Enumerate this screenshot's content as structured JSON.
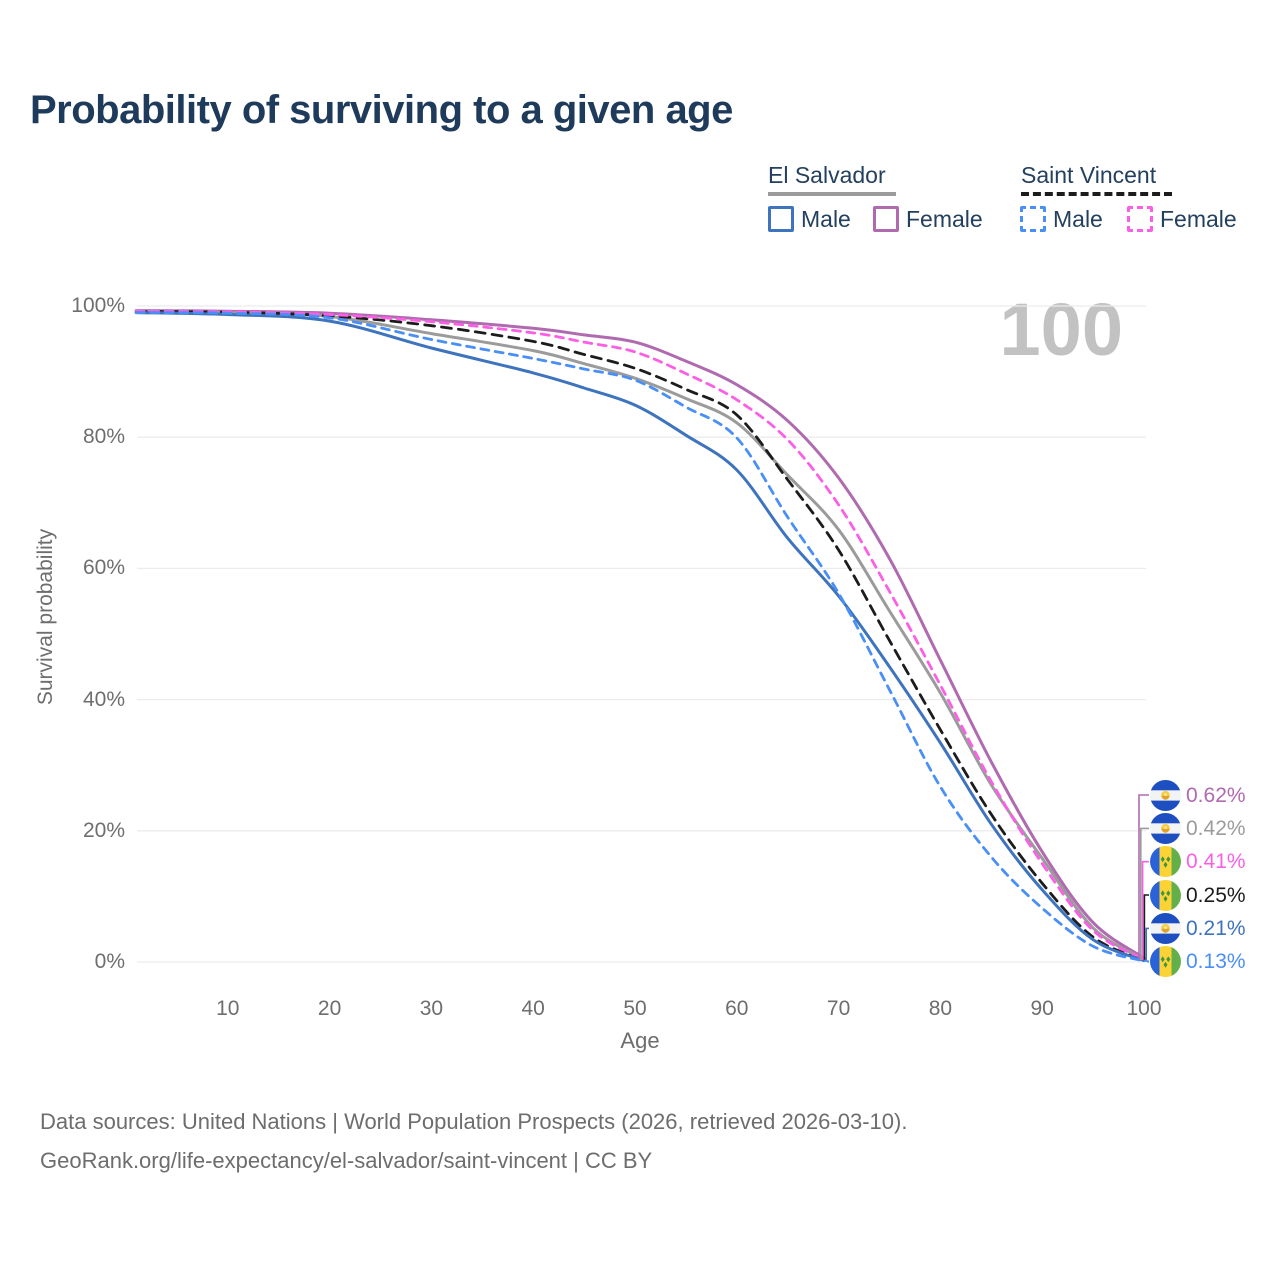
{
  "title": "Probability of surviving to a given age",
  "watermark": "100",
  "legend": {
    "groups": [
      {
        "label": "El Salvador",
        "line_color": "#9b9b9b",
        "line_style": "solid",
        "items": [
          {
            "label": "Male",
            "color": "#3e73bd",
            "style": "solid"
          },
          {
            "label": "Female",
            "color": "#b06ab0",
            "style": "solid"
          }
        ]
      },
      {
        "label": "Saint Vincent",
        "line_color": "#1c1c1c",
        "line_style": "dashed",
        "items": [
          {
            "label": "Male",
            "color": "#4a8ff5",
            "style": "dashed"
          },
          {
            "label": "Female",
            "color": "#fb5fe6",
            "style": "dashed"
          }
        ]
      }
    ]
  },
  "axes": {
    "y": {
      "label": "Survival probability",
      "ticks": [
        "0%",
        "20%",
        "40%",
        "60%",
        "80%",
        "100%"
      ]
    },
    "x": {
      "label": "Age",
      "ticks": [
        "10",
        "20",
        "30",
        "40",
        "50",
        "60",
        "70",
        "80",
        "90",
        "100"
      ]
    }
  },
  "end_labels": [
    {
      "value": "0.62%",
      "flag": "el-salvador",
      "color": "#b06ab0"
    },
    {
      "value": "0.42%",
      "flag": "el-salvador",
      "color": "#9b9b9b"
    },
    {
      "value": "0.41%",
      "flag": "saint-vincent",
      "color": "#fb5fe6"
    },
    {
      "value": "0.25%",
      "flag": "saint-vincent",
      "color": "#1c1c1c"
    },
    {
      "value": "0.21%",
      "flag": "el-salvador",
      "color": "#3e73bd"
    },
    {
      "value": "0.13%",
      "flag": "saint-vincent",
      "color": "#4a8ff5"
    }
  ],
  "footer": {
    "line1": "Data sources: United Nations | World Population Prospects (2026, retrieved 2026-03-10).",
    "line2": "GeoRank.org/life-expectancy/el-salvador/saint-vincent | CC BY"
  },
  "chart_data": {
    "type": "line",
    "title": "Probability of surviving to a given age",
    "xlabel": "Age",
    "ylabel": "Survival probability",
    "xlim": [
      0,
      100
    ],
    "ylim": [
      0,
      100
    ],
    "y_unit": "%",
    "grid": "horizontal",
    "legend_position": "top-right",
    "x": [
      1,
      10,
      20,
      30,
      40,
      45,
      50,
      55,
      60,
      65,
      70,
      75,
      80,
      85,
      90,
      95,
      100
    ],
    "series": [
      {
        "name": "El Salvador Female",
        "country": "El Salvador",
        "sex": "Female",
        "color": "#b06ab0",
        "dash": "solid",
        "end_label": "0.62%",
        "values": [
          99.3,
          99.2,
          98.9,
          97.9,
          96.6,
          95.6,
          94.5,
          91.6,
          88.0,
          82.5,
          73.8,
          61.5,
          46.0,
          30.5,
          16.8,
          6.0,
          0.62
        ]
      },
      {
        "name": "El Salvador Both sexes",
        "country": "El Salvador",
        "sex": "Both",
        "color": "#9b9b9b",
        "dash": "solid",
        "end_label": "0.42%",
        "values": [
          99.1,
          99.0,
          98.4,
          95.8,
          93.2,
          91.2,
          89.0,
          85.9,
          82.2,
          74.2,
          65.9,
          53.5,
          41.0,
          27.0,
          15.8,
          5.2,
          0.42
        ]
      },
      {
        "name": "Saint Vincent Both sexes",
        "country": "Saint Vincent",
        "sex": "Both",
        "color": "#1c1c1c",
        "dash": "dashed",
        "end_label": "0.25%",
        "values": [
          99.15,
          99.05,
          98.5,
          97.0,
          94.6,
          92.6,
          90.5,
          87.3,
          83.4,
          73.5,
          62.8,
          49.0,
          35.4,
          22.5,
          12.0,
          3.8,
          0.25
        ]
      },
      {
        "name": "Saint Vincent Female",
        "country": "Saint Vincent",
        "sex": "Female",
        "color": "#fb5fe6",
        "dash": "dashed",
        "end_label": "0.41%",
        "values": [
          99.2,
          99.1,
          98.7,
          97.6,
          95.9,
          94.5,
          93.0,
          89.7,
          85.7,
          79.6,
          69.7,
          56.5,
          42.2,
          27.5,
          15.0,
          4.8,
          0.41
        ]
      },
      {
        "name": "El Salvador Male",
        "country": "El Salvador",
        "sex": "Male",
        "color": "#3e73bd",
        "dash": "solid",
        "end_label": "0.21%",
        "values": [
          99.0,
          98.7,
          97.7,
          93.6,
          89.8,
          87.5,
          84.9,
          80.3,
          75.0,
          64.6,
          55.8,
          45.0,
          33.4,
          21.0,
          11.0,
          3.4,
          0.21
        ]
      },
      {
        "name": "Saint Vincent Male",
        "country": "Saint Vincent",
        "sex": "Male",
        "color": "#4a8ff5",
        "dash": "dashed",
        "end_label": "0.13%",
        "values": [
          99.0,
          98.9,
          98.2,
          94.9,
          92.0,
          90.4,
          88.7,
          84.6,
          79.9,
          67.8,
          56.2,
          41.5,
          26.7,
          16.0,
          8.2,
          2.4,
          0.13
        ]
      }
    ]
  }
}
